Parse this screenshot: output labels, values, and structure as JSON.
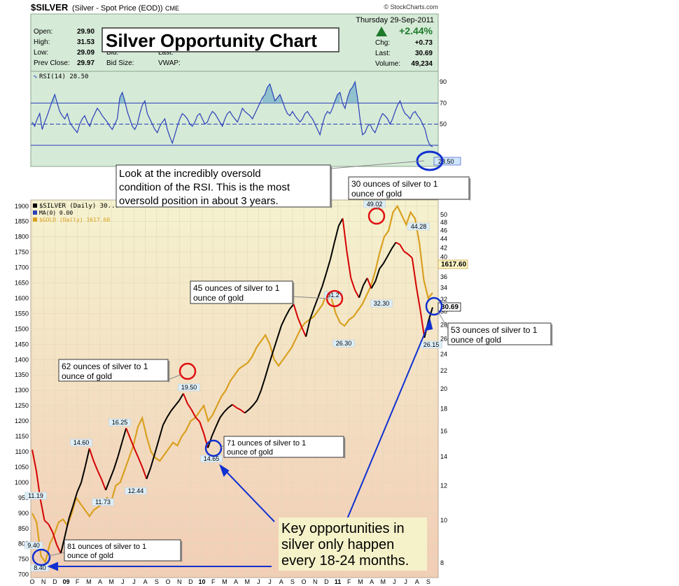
{
  "header": {
    "symbol": "$SILVER",
    "description": "(Silver - Spot Price (EOD))",
    "exchange": "CME",
    "credit": "© StockCharts.com",
    "date": "Thursday  29-Sep-2011",
    "change_pct": "+2.44%",
    "quote_left": [
      {
        "label": "Open:",
        "value": "29.90"
      },
      {
        "label": "High:",
        "value": "31.53"
      },
      {
        "label": "Low:",
        "value": "29.09"
      },
      {
        "label": "Prev Close:",
        "value": "29.97"
      }
    ],
    "quote_mid": [
      {
        "label": "Bid:"
      },
      {
        "label": "Bid Size:"
      }
    ],
    "quote_mid2": [
      {
        "label": "Last:"
      },
      {
        "label": "VWAP:"
      }
    ],
    "quote_right": [
      {
        "label": "Chg:",
        "value": "+0.73"
      },
      {
        "label": "Last:",
        "value": "30.69"
      },
      {
        "label": "Volume:",
        "value": "49,234"
      }
    ]
  },
  "title": "Silver Opportunity Chart",
  "colors": {
    "rsi_line": "#2b3fb8",
    "silver_up": "#000000",
    "silver_down": "#d40000",
    "gold_line": "#d9a020",
    "circle_red": "#e01010",
    "circle_blue": "#1030d0",
    "rsi_bg": "#d6ead8",
    "price_bg_top": "#f4f0cc",
    "price_bg_bottom": "#f2cfb8"
  },
  "chart_data": [
    {
      "type": "line",
      "ylabel": "RSI(14)",
      "legend": "RSI(14) 28.50",
      "last_value": "28.50",
      "y_ticks": [
        "90",
        "70",
        "50"
      ],
      "ylim": [
        10,
        100
      ],
      "reference_lines": [
        70,
        50,
        30
      ],
      "series": [
        {
          "values": [
            52,
            48,
            55,
            60,
            45,
            52,
            58,
            65,
            72,
            78,
            70,
            62,
            58,
            55,
            60,
            52,
            48,
            45,
            42,
            50,
            55,
            58,
            52,
            48,
            55,
            60,
            65,
            62,
            58,
            55,
            52,
            48,
            45,
            50,
            55,
            75,
            80,
            72,
            62,
            55,
            48,
            45,
            50,
            60,
            68,
            72,
            60,
            55,
            50,
            45,
            42,
            48,
            52,
            55,
            45,
            38,
            32,
            40,
            48,
            55,
            60,
            58,
            55,
            50,
            48,
            52,
            58,
            60,
            55,
            50,
            52,
            58,
            62,
            60,
            56,
            52,
            48,
            55,
            60,
            62,
            58,
            55,
            52,
            58,
            65,
            62,
            60,
            58,
            55,
            60,
            65,
            70,
            75,
            78,
            85,
            88,
            80,
            72,
            75,
            78,
            72,
            65,
            60,
            58,
            62,
            58,
            55,
            52,
            55,
            60,
            62,
            58,
            55,
            50,
            45,
            40,
            50,
            58,
            62,
            60,
            65,
            72,
            78,
            80,
            70,
            65,
            75,
            82,
            85,
            90,
            75,
            55,
            40,
            42,
            48,
            50,
            45,
            42,
            48,
            55,
            60,
            58,
            55,
            50,
            55,
            62,
            68,
            72,
            65,
            60,
            58,
            55,
            60,
            62,
            58,
            55,
            50,
            45,
            35,
            30,
            28.5
          ]
        }
      ]
    },
    {
      "type": "line",
      "legend": [
        {
          "symbol": "$SILVER (Daily) 30...",
          "color": "#000000"
        },
        {
          "symbol": "MA(0) 0.00",
          "color": "#2b3fb8"
        },
        {
          "symbol": "$GOLD (Daily) 1617.60",
          "color": "#d9a020"
        }
      ],
      "x_tick_labels": [
        "O",
        "N",
        "D",
        "09",
        "F",
        "M",
        "A",
        "M",
        "J",
        "J",
        "A",
        "S",
        "O",
        "N",
        "D",
        "10",
        "F",
        "M",
        "A",
        "M",
        "J",
        "J",
        "A",
        "S",
        "O",
        "N",
        "D",
        "11",
        "F",
        "M",
        "A",
        "M",
        "J",
        "J",
        "A",
        "S"
      ],
      "y_left_ticks": [
        "1900",
        "1850",
        "1800",
        "1750",
        "1700",
        "1650",
        "1600",
        "1550",
        "1500",
        "1450",
        "1400",
        "1350",
        "1300",
        "1250",
        "1200",
        "1150",
        "1100",
        "1050",
        "1000",
        "950",
        "900",
        "850",
        "800",
        "750",
        "700"
      ],
      "y_right_ticks": [
        "50",
        "48",
        "46",
        "44",
        "42",
        "40",
        "38",
        "36",
        "34",
        "32",
        "30",
        "28",
        "26",
        "24",
        "22",
        "20",
        "18",
        "16",
        "14",
        "12",
        "10",
        "8"
      ],
      "y_right_scale": "log",
      "ylim_left": [
        690,
        1920
      ],
      "ylim_right": [
        7.4,
        54
      ],
      "series": [
        {
          "name": "$SILVER",
          "axis": "right",
          "values": [
            14.5,
            13,
            11.19,
            10,
            9.8,
            9.4,
            8.8,
            8.4,
            9.2,
            10.1,
            10.8,
            11.6,
            12.2,
            13.3,
            14.6,
            13.7,
            13,
            12.4,
            11.73,
            12.4,
            13.1,
            14.0,
            15.1,
            16.25,
            15.4,
            14.6,
            13.9,
            13.2,
            12.44,
            13.2,
            14.2,
            15.3,
            16.5,
            17.2,
            17.8,
            18.3,
            18.8,
            19.5,
            18.5,
            17.9,
            17.2,
            16.8,
            15.8,
            14.65,
            15.6,
            16.4,
            17.2,
            17.7,
            18.1,
            18.4,
            18.1,
            17.9,
            17.6,
            17.9,
            18.3,
            18.8,
            19.8,
            21.2,
            22.8,
            24.4,
            26.1,
            27.9,
            29.2,
            30.4,
            31.2,
            29.1,
            27.6,
            26.3,
            28.8,
            30.6,
            32.4,
            34.3,
            36.8,
            39.6,
            43.3,
            47.1,
            49.02,
            41.2,
            35.8,
            33.6,
            32.3,
            34.4,
            35.8,
            33.9,
            35.2,
            37.6,
            38.7,
            40.2,
            41.8,
            43.2,
            42.7,
            41.2,
            40.6,
            39.8,
            34.3,
            30.2,
            26.15,
            28.6,
            30.69
          ]
        },
        {
          "name": "$GOLD",
          "axis": "left",
          "values": [
            900,
            870,
            760,
            740,
            800,
            830,
            870,
            880,
            860,
            900,
            950,
            930,
            910,
            890,
            910,
            920,
            930,
            950,
            940,
            990,
            1000,
            1040,
            1080,
            1120,
            1180,
            1210,
            1150,
            1100,
            1080,
            1070,
            1090,
            1110,
            1130,
            1120,
            1150,
            1170,
            1200,
            1210,
            1230,
            1250,
            1200,
            1220,
            1250,
            1280,
            1300,
            1330,
            1350,
            1370,
            1380,
            1390,
            1410,
            1440,
            1460,
            1480,
            1450,
            1400,
            1380,
            1400,
            1420,
            1440,
            1470,
            1500,
            1520,
            1530,
            1540,
            1560,
            1580,
            1620,
            1600,
            1550,
            1520,
            1510,
            1530,
            1540,
            1560,
            1580,
            1610,
            1640,
            1690,
            1750,
            1800,
            1820,
            1880,
            1900,
            1870,
            1840,
            1880,
            1860,
            1780,
            1660,
            1600,
            1617.6
          ]
        }
      ],
      "data_labels": [
        "49.02",
        "44.28",
        "32.30",
        "31.2",
        "26.30",
        "26.15",
        "19.50",
        "16.25",
        "14.60",
        "14.65",
        "12.44",
        "11.73",
        "11.19",
        "9.40",
        "8.40"
      ],
      "last_value_labels": {
        "gold": "1617.60",
        "silver": "30.69"
      },
      "annotations": [
        "Look at the incredibly oversold condition of the RSI.  This is the most oversold position in about 3 years.",
        "30 ounces of silver to 1 ounce of gold",
        "45 ounces of silver to 1 ounce of gold",
        "53 ounces of silver to 1 ounce of gold",
        "62 ounces of silver to 1 ounce of gold",
        "71 ounces of silver to 1 ounce of gold",
        "81 ounces of silver to 1 ounce of gold",
        "Key opportunities in silver only happen every 18-24 months."
      ]
    }
  ]
}
